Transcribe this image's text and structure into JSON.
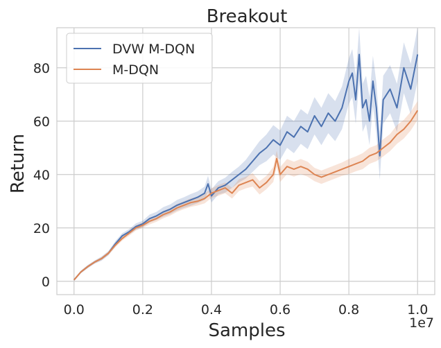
{
  "chart_data": {
    "type": "line",
    "title": "Breakout",
    "xlabel": "Samples",
    "ylabel": "Return",
    "x_exponent_label": "1e7",
    "xlim": [
      -0.05,
      1.05
    ],
    "ylim": [
      -5,
      95
    ],
    "x_ticks": [
      0.0,
      0.2,
      0.4,
      0.6,
      0.8,
      1.0
    ],
    "x_tick_labels": [
      "0.0",
      "0.2",
      "0.4",
      "0.6",
      "0.8",
      "1.0"
    ],
    "y_ticks": [
      0,
      20,
      40,
      60,
      80
    ],
    "y_tick_labels": [
      "0",
      "20",
      "40",
      "60",
      "80"
    ],
    "grid": true,
    "legend_position": "top-left",
    "series": [
      {
        "name": "DVW M-DQN",
        "color": "#4c72b0",
        "x": [
          0.0,
          0.02,
          0.04,
          0.06,
          0.08,
          0.1,
          0.12,
          0.14,
          0.16,
          0.18,
          0.2,
          0.22,
          0.24,
          0.26,
          0.28,
          0.3,
          0.32,
          0.34,
          0.36,
          0.38,
          0.39,
          0.4,
          0.42,
          0.44,
          0.46,
          0.48,
          0.5,
          0.52,
          0.54,
          0.56,
          0.58,
          0.6,
          0.62,
          0.64,
          0.66,
          0.68,
          0.7,
          0.72,
          0.74,
          0.76,
          0.78,
          0.8,
          0.81,
          0.82,
          0.83,
          0.84,
          0.85,
          0.86,
          0.87,
          0.88,
          0.89,
          0.9,
          0.92,
          0.94,
          0.96,
          0.98,
          1.0
        ],
        "values": [
          0.5,
          3.5,
          5.5,
          7.2,
          8.5,
          10.5,
          14.0,
          17.0,
          18.5,
          20.5,
          21.5,
          23.5,
          24.5,
          26.0,
          27.0,
          28.5,
          29.5,
          30.5,
          31.5,
          33.0,
          36.5,
          32.0,
          35.0,
          36.0,
          38.0,
          40.0,
          42.0,
          45.0,
          48.0,
          50.0,
          53.0,
          51.0,
          56.0,
          54.0,
          58.0,
          56.0,
          62.0,
          58.0,
          63.0,
          60.0,
          65.0,
          75.0,
          78.0,
          68.0,
          85.0,
          65.0,
          68.0,
          60.0,
          75.0,
          65.0,
          47.0,
          68.0,
          72.0,
          65.0,
          80.0,
          72.0,
          85.0
        ],
        "band_width": [
          0.3,
          0.5,
          0.6,
          0.6,
          0.8,
          0.8,
          1.0,
          1.0,
          1.0,
          1.2,
          1.2,
          1.5,
          1.5,
          1.8,
          1.8,
          2.0,
          2.0,
          2.2,
          2.2,
          2.5,
          3.0,
          2.5,
          2.5,
          2.8,
          3.0,
          3.0,
          3.5,
          4.0,
          4.5,
          5.0,
          5.5,
          5.5,
          6.0,
          6.0,
          6.5,
          6.5,
          7.0,
          7.0,
          7.5,
          7.5,
          8.0,
          8.5,
          9.0,
          9.0,
          10.0,
          9.0,
          9.0,
          9.0,
          9.5,
          9.5,
          9.0,
          9.0,
          9.0,
          9.0,
          9.5,
          9.5,
          10.0
        ]
      },
      {
        "name": "M-DQN",
        "color": "#dd8452",
        "x": [
          0.0,
          0.02,
          0.04,
          0.06,
          0.08,
          0.1,
          0.12,
          0.14,
          0.16,
          0.18,
          0.2,
          0.22,
          0.24,
          0.26,
          0.28,
          0.3,
          0.32,
          0.34,
          0.36,
          0.38,
          0.4,
          0.42,
          0.44,
          0.46,
          0.48,
          0.5,
          0.52,
          0.54,
          0.56,
          0.58,
          0.59,
          0.6,
          0.62,
          0.64,
          0.66,
          0.68,
          0.7,
          0.72,
          0.74,
          0.76,
          0.78,
          0.8,
          0.82,
          0.84,
          0.86,
          0.88,
          0.9,
          0.92,
          0.94,
          0.96,
          0.98,
          1.0
        ],
        "values": [
          0.5,
          3.5,
          5.5,
          7.2,
          8.5,
          10.5,
          13.5,
          16.0,
          18.0,
          20.0,
          21.0,
          22.5,
          23.5,
          25.0,
          26.0,
          27.5,
          28.5,
          29.5,
          30.0,
          31.0,
          33.0,
          34.0,
          35.0,
          33.0,
          36.0,
          37.0,
          38.0,
          35.0,
          37.0,
          40.0,
          46.0,
          40.0,
          43.0,
          42.0,
          43.0,
          42.0,
          40.0,
          39.0,
          40.0,
          41.0,
          42.0,
          43.0,
          44.0,
          45.0,
          47.0,
          48.0,
          50.0,
          52.0,
          55.0,
          57.0,
          60.0,
          64.0
        ],
        "band_width": [
          0.3,
          0.4,
          0.5,
          0.5,
          0.6,
          0.7,
          0.8,
          0.8,
          1.0,
          1.0,
          1.0,
          1.2,
          1.2,
          1.4,
          1.4,
          1.5,
          1.5,
          1.6,
          1.6,
          1.8,
          1.8,
          2.0,
          2.0,
          2.0,
          2.2,
          2.2,
          2.5,
          2.5,
          2.5,
          2.8,
          3.0,
          2.8,
          2.8,
          2.8,
          2.8,
          2.8,
          2.5,
          2.5,
          2.5,
          2.5,
          2.5,
          2.8,
          2.8,
          3.0,
          3.0,
          3.0,
          3.2,
          3.2,
          3.5,
          3.5,
          3.5,
          3.5
        ]
      }
    ]
  }
}
